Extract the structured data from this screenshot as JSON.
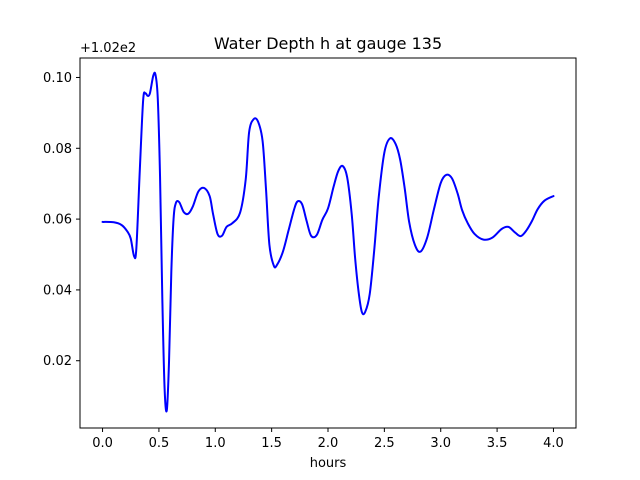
{
  "chart_data": {
    "type": "line",
    "title": "Water Depth h at gauge 135",
    "xlabel": "hours",
    "ylabel": "",
    "y_offset_label": "+1.02e2",
    "xlim": [
      -0.2,
      4.2
    ],
    "ylim": [
      0.001,
      0.1055
    ],
    "x_ticks": [
      0.0,
      0.5,
      1.0,
      1.5,
      2.0,
      2.5,
      3.0,
      3.5,
      4.0
    ],
    "x_tick_labels": [
      "0.0",
      "0.5",
      "1.0",
      "1.5",
      "2.0",
      "2.5",
      "3.0",
      "3.5",
      "4.0"
    ],
    "y_ticks": [
      0.02,
      0.04,
      0.06,
      0.08,
      0.1
    ],
    "y_tick_labels": [
      "0.02",
      "0.04",
      "0.06",
      "0.08",
      "0.10"
    ],
    "grid": false,
    "line_color": "#0000ff",
    "series": [
      {
        "x": [
          0.0,
          0.1,
          0.17,
          0.22,
          0.25,
          0.28,
          0.3,
          0.33,
          0.36,
          0.38,
          0.4,
          0.42,
          0.45,
          0.47,
          0.49,
          0.51,
          0.53,
          0.55,
          0.57,
          0.59,
          0.61,
          0.63,
          0.65,
          0.68,
          0.72,
          0.76,
          0.8,
          0.85,
          0.9,
          0.95,
          0.98,
          1.02,
          1.06,
          1.1,
          1.15,
          1.22,
          1.27,
          1.3,
          1.34,
          1.38,
          1.42,
          1.45,
          1.48,
          1.52,
          1.55,
          1.6,
          1.65,
          1.7,
          1.73,
          1.77,
          1.81,
          1.85,
          1.9,
          1.95,
          2.0,
          2.05,
          2.09,
          2.13,
          2.17,
          2.21,
          2.24,
          2.27,
          2.3,
          2.33,
          2.37,
          2.41,
          2.45,
          2.5,
          2.55,
          2.6,
          2.64,
          2.68,
          2.72,
          2.77,
          2.82,
          2.88,
          2.94,
          3.0,
          3.05,
          3.1,
          3.15,
          3.19,
          3.24,
          3.3,
          3.38,
          3.46,
          3.54,
          3.6,
          3.66,
          3.71,
          3.76,
          3.81,
          3.86,
          3.92,
          4.0
        ],
        "y": [
          0.0592,
          0.0591,
          0.0583,
          0.0565,
          0.0545,
          0.0495,
          0.0518,
          0.0735,
          0.0935,
          0.0955,
          0.0948,
          0.0955,
          0.1005,
          0.1007,
          0.094,
          0.072,
          0.038,
          0.0125,
          0.006,
          0.02,
          0.045,
          0.06,
          0.0645,
          0.0648,
          0.062,
          0.0615,
          0.0635,
          0.0678,
          0.0688,
          0.0665,
          0.0615,
          0.0558,
          0.0553,
          0.0578,
          0.0588,
          0.0618,
          0.0712,
          0.0845,
          0.0882,
          0.0875,
          0.082,
          0.0685,
          0.0528,
          0.0468,
          0.0472,
          0.0508,
          0.0568,
          0.0628,
          0.065,
          0.0642,
          0.0595,
          0.0553,
          0.0555,
          0.0598,
          0.063,
          0.0692,
          0.0735,
          0.075,
          0.0718,
          0.0615,
          0.0492,
          0.0398,
          0.0338,
          0.0338,
          0.0388,
          0.0512,
          0.0662,
          0.0788,
          0.0828,
          0.0812,
          0.0768,
          0.0688,
          0.0592,
          0.0528,
          0.0508,
          0.0548,
          0.0628,
          0.0702,
          0.0725,
          0.0715,
          0.0672,
          0.0625,
          0.0588,
          0.0558,
          0.0542,
          0.0548,
          0.0572,
          0.0578,
          0.0562,
          0.0552,
          0.0568,
          0.0595,
          0.0628,
          0.0652,
          0.0665
        ]
      }
    ]
  }
}
